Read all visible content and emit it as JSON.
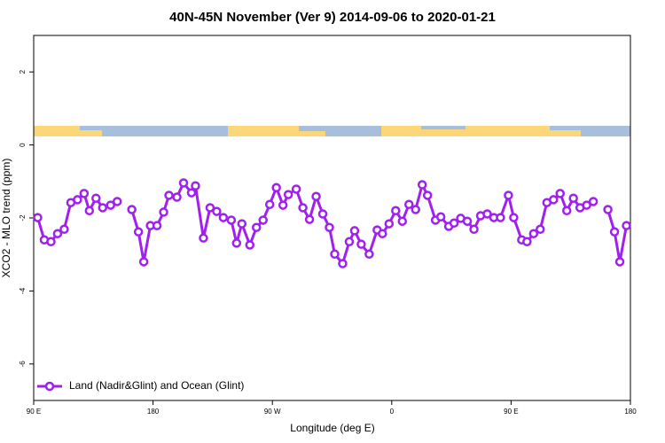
{
  "chart_data": {
    "type": "line",
    "title": "40N-45N November (Ver 9)   2014-09-06 to 2020-01-21",
    "x_label": "Longitude (deg E)",
    "y_label": "XCO2 - MLO trend (ppm)",
    "x": [
      93,
      98,
      103,
      108,
      113,
      118,
      123,
      128,
      132,
      137,
      142,
      148,
      153,
      158,
      164,
      169,
      173,
      178,
      183,
      188,
      192,
      198,
      203,
      209,
      212,
      218,
      223,
      228,
      233,
      239,
      243,
      247,
      253,
      258,
      263,
      268,
      273,
      278,
      282,
      288,
      293,
      298,
      303,
      308,
      313,
      317,
      323,
      328,
      332,
      337,
      343,
      349,
      353,
      358,
      363,
      368,
      373,
      378,
      383,
      387,
      393,
      397,
      403,
      407,
      412,
      417,
      422,
      427,
      432,
      437,
      442,
      448,
      452,
      458,
      462,
      467,
      472,
      477,
      482,
      487,
      492,
      497,
      502,
      507,
      512,
      518,
      523,
      528,
      532,
      537
    ],
    "series": [
      {
        "name": "Land (Nadir&Glint) and Ocean (Glint)",
        "color": "#a020f0",
        "values": [
          -1.99,
          -2.6,
          -2.65,
          -2.43,
          -2.31,
          -1.58,
          -1.5,
          -1.33,
          -1.8,
          -1.46,
          -1.72,
          -1.65,
          -1.55,
          null,
          -1.77,
          -2.38,
          -3.2,
          -2.21,
          -2.21,
          -1.84,
          -1.38,
          -1.43,
          -1.04,
          -1.31,
          -1.12,
          -2.55,
          -1.72,
          -1.82,
          -1.99,
          -2.06,
          -2.69,
          -2.16,
          -2.74,
          -2.26,
          -2.06,
          -1.63,
          -1.17,
          -1.65,
          -1.36,
          -1.21,
          -1.72,
          -2.04,
          -1.41,
          -1.89,
          -2.26,
          -2.99,
          -3.25,
          -2.65,
          -2.35,
          -2.72,
          -2.99,
          -2.33,
          -2.43,
          -2.16,
          -1.8,
          -2.09,
          -1.63,
          -1.77,
          -1.09,
          -1.38,
          -2.06,
          -1.97,
          -2.23,
          -2.14,
          -2.01,
          -2.09,
          -2.31,
          -1.94,
          -1.89,
          -1.99,
          -1.99,
          -1.38,
          -1.99,
          -2.6,
          -2.65,
          -2.43,
          -2.31,
          -1.58,
          -1.5,
          -1.33,
          -1.8,
          -1.46,
          -1.72,
          -1.65,
          -1.55,
          null,
          -1.77,
          -2.38,
          -3.2,
          -2.21
        ]
      }
    ],
    "xlim": [
      90,
      540
    ],
    "xticks": [
      {
        "value": 90,
        "label": "90 E"
      },
      {
        "value": 180,
        "label": "180"
      },
      {
        "value": 270,
        "label": "90 W"
      },
      {
        "value": 360,
        "label": "0"
      },
      {
        "value": 450,
        "label": "90 E"
      },
      {
        "value": 540,
        "label": "180"
      }
    ],
    "ylim": [
      -7,
      3
    ],
    "yticks": [
      -6,
      -4,
      -2,
      0,
      2
    ],
    "legend": "bottom-left"
  }
}
